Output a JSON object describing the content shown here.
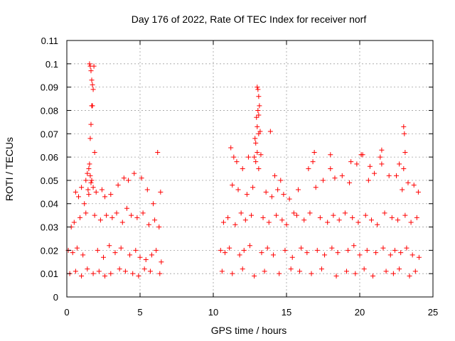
{
  "chart_data": {
    "type": "scatter",
    "title": "Day 176 of 2022, Rate Of TEC Index for receiver norf",
    "xlabel": "GPS time / hours",
    "ylabel": "ROTI / TECUs",
    "xlim": [
      0,
      25
    ],
    "ylim": [
      0,
      0.11
    ],
    "xticks": [
      0,
      5,
      10,
      15,
      20,
      25
    ],
    "xtick_labels": [
      "0",
      "5",
      "10",
      "15",
      "20",
      "25"
    ],
    "yticks": [
      0,
      0.01,
      0.02,
      0.03,
      0.04,
      0.05,
      0.06,
      0.07,
      0.08,
      0.09,
      0.1,
      0.11
    ],
    "ytick_labels": [
      "0",
      "0.01",
      "0.02",
      "0.03",
      "0.04",
      "0.05",
      "0.06",
      "0.07",
      "0.08",
      "0.09",
      "0.1",
      "0.11"
    ],
    "grid": true,
    "legend": "none",
    "marker": "plus",
    "color": "#ff0000",
    "series": [
      {
        "x": [
          1.55,
          1.6,
          1.65,
          1.7,
          1.75,
          1.8,
          1.85,
          1.7,
          1.75,
          1.6,
          1.65,
          1.9,
          1.5,
          1.55,
          1.6,
          1.7,
          1.45,
          1.5,
          1.65,
          1.3,
          1.4,
          1.8,
          2.0,
          0.6,
          0.8,
          1.0,
          1.2,
          2.4,
          2.6,
          3.0,
          3.5,
          3.9,
          4.2,
          4.6,
          5.1,
          5.5,
          5.9,
          6.2,
          6.4,
          0.3,
          0.5,
          0.9,
          1.3,
          1.9,
          2.3,
          2.7,
          3.1,
          3.4,
          3.8,
          4.1,
          4.4,
          4.8,
          5.2,
          5.6,
          6.0,
          6.3,
          0.1,
          0.4,
          0.7,
          1.1,
          2.1,
          2.5,
          2.9,
          3.3,
          3.7,
          4.3,
          4.7,
          5.0,
          5.4,
          5.8,
          6.1,
          6.45,
          0.2,
          0.6,
          1.0,
          1.4,
          1.8,
          2.2,
          2.6,
          3.0,
          3.6,
          4.0,
          4.5,
          4.9,
          5.3,
          5.7,
          6.35,
          13.0,
          13.05,
          13.1,
          13.15,
          13.05,
          13.1,
          12.95,
          13.0,
          13.1,
          12.85,
          12.9,
          13.2,
          13.25,
          13.9,
          13.0,
          12.8,
          12.9,
          13.1,
          11.2,
          11.4,
          11.6,
          12.0,
          12.4,
          14.2,
          14.6,
          11.3,
          11.7,
          12.3,
          12.7,
          13.6,
          14.0,
          14.4,
          14.8,
          15.2,
          10.7,
          11.0,
          11.5,
          11.9,
          12.2,
          12.6,
          13.4,
          13.8,
          14.3,
          14.7,
          15.0,
          15.5,
          10.5,
          10.8,
          11.1,
          11.8,
          12.1,
          12.5,
          13.3,
          13.7,
          14.1,
          14.9,
          15.4,
          10.6,
          11.3,
          12.0,
          12.8,
          13.5,
          14.5,
          15.3,
          15.8,
          16.5,
          16.8,
          17.0,
          17.5,
          18.0,
          18.3,
          18.8,
          19.3,
          19.8,
          20.2,
          20.6,
          21.0,
          21.4,
          21.5,
          22.0,
          22.5,
          22.9,
          23.0,
          23.3,
          23.7,
          24.0,
          15.7,
          16.2,
          16.6,
          17.3,
          17.8,
          18.2,
          18.6,
          19.0,
          19.5,
          19.9,
          20.4,
          20.8,
          21.2,
          21.7,
          22.2,
          22.6,
          23.1,
          23.5,
          23.9,
          16.0,
          16.4,
          17.1,
          17.6,
          18.1,
          18.5,
          19.2,
          19.6,
          20.0,
          20.5,
          21.1,
          21.6,
          22.1,
          22.4,
          22.8,
          23.2,
          23.6,
          24.05,
          15.9,
          16.7,
          17.4,
          18.4,
          19.1,
          19.7,
          20.3,
          20.9,
          21.8,
          22.3,
          22.7,
          23.4,
          23.8,
          16.9,
          18.0,
          19.4,
          20.7,
          22.7,
          23.0,
          23.05,
          23.1,
          21.5,
          20.1
        ],
        "y": [
          0.1,
          0.099,
          0.097,
          0.093,
          0.091,
          0.089,
          0.099,
          0.082,
          0.082,
          0.068,
          0.074,
          0.062,
          0.055,
          0.057,
          0.052,
          0.05,
          0.046,
          0.044,
          0.049,
          0.05,
          0.053,
          0.047,
          0.045,
          0.045,
          0.043,
          0.047,
          0.04,
          0.046,
          0.043,
          0.044,
          0.048,
          0.051,
          0.05,
          0.053,
          0.051,
          0.046,
          0.04,
          0.062,
          0.045,
          0.03,
          0.032,
          0.034,
          0.036,
          0.035,
          0.033,
          0.035,
          0.034,
          0.036,
          0.032,
          0.038,
          0.035,
          0.034,
          0.036,
          0.031,
          0.033,
          0.03,
          0.02,
          0.019,
          0.021,
          0.018,
          0.02,
          0.017,
          0.022,
          0.019,
          0.021,
          0.018,
          0.02,
          0.017,
          0.016,
          0.018,
          0.02,
          0.015,
          0.01,
          0.011,
          0.009,
          0.012,
          0.01,
          0.011,
          0.009,
          0.01,
          0.012,
          0.011,
          0.01,
          0.009,
          0.012,
          0.011,
          0.01,
          0.09,
          0.089,
          0.086,
          0.082,
          0.08,
          0.078,
          0.077,
          0.073,
          0.07,
          0.068,
          0.066,
          0.071,
          0.061,
          0.071,
          0.062,
          0.06,
          0.058,
          0.055,
          0.064,
          0.06,
          0.058,
          0.055,
          0.06,
          0.052,
          0.05,
          0.048,
          0.046,
          0.044,
          0.047,
          0.045,
          0.043,
          0.046,
          0.044,
          0.042,
          0.032,
          0.034,
          0.031,
          0.036,
          0.033,
          0.035,
          0.034,
          0.032,
          0.035,
          0.033,
          0.031,
          0.036,
          0.02,
          0.019,
          0.021,
          0.018,
          0.02,
          0.022,
          0.019,
          0.021,
          0.018,
          0.02,
          0.017,
          0.011,
          0.01,
          0.012,
          0.009,
          0.011,
          0.01,
          0.012,
          0.046,
          0.055,
          0.058,
          0.047,
          0.05,
          0.055,
          0.051,
          0.052,
          0.049,
          0.057,
          0.061,
          0.05,
          0.053,
          0.06,
          0.057,
          0.052,
          0.052,
          0.046,
          0.055,
          0.049,
          0.048,
          0.045,
          0.035,
          0.033,
          0.036,
          0.034,
          0.032,
          0.035,
          0.033,
          0.036,
          0.034,
          0.032,
          0.035,
          0.033,
          0.031,
          0.036,
          0.034,
          0.033,
          0.035,
          0.032,
          0.034,
          0.021,
          0.019,
          0.02,
          0.018,
          0.021,
          0.019,
          0.02,
          0.022,
          0.018,
          0.02,
          0.019,
          0.021,
          0.018,
          0.02,
          0.019,
          0.021,
          0.018,
          0.017,
          0.011,
          0.01,
          0.012,
          0.009,
          0.011,
          0.01,
          0.012,
          0.009,
          0.011,
          0.01,
          0.012,
          0.009,
          0.011,
          0.062,
          0.061,
          0.058,
          0.056,
          0.057,
          0.073,
          0.07,
          0.062,
          0.063,
          0.061
        ]
      }
    ]
  }
}
